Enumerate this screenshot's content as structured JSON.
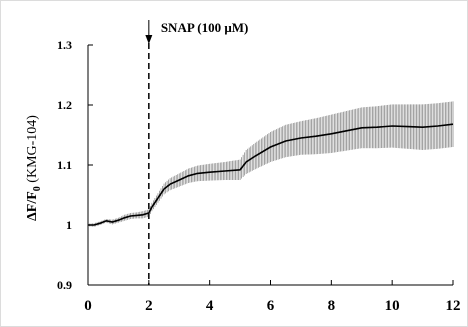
{
  "chart_data": {
    "type": "line",
    "title": "",
    "xlabel": "",
    "ylabel": {
      "delta_f": "ΔF/F",
      "subscript": "0",
      "suffix": " (KMG-104)"
    },
    "xlim": [
      0,
      12
    ],
    "ylim": [
      0.9,
      1.3
    ],
    "x_ticks": [
      "0",
      "2",
      "4",
      "6",
      "8",
      "10",
      "12"
    ],
    "y_ticks": [
      "0.9",
      "1",
      "1.1",
      "1.2",
      "1.3"
    ],
    "grid": false,
    "annotation": {
      "text": "SNAP (100 μM)",
      "x": 2
    },
    "series": [
      {
        "x": [
          0,
          0.2,
          0.4,
          0.6,
          0.8,
          1.0,
          1.2,
          1.4,
          1.6,
          1.8,
          2.0,
          2.1,
          2.3,
          2.5,
          2.7,
          3.0,
          3.3,
          3.6,
          4.0,
          4.5,
          5.0,
          5.2,
          5.5,
          6.0,
          6.5,
          7.0,
          7.5,
          8.0,
          8.5,
          9.0,
          9.5,
          10.0,
          10.5,
          11.0,
          11.5,
          12.0
        ],
        "values": [
          1.0,
          1.0,
          1.003,
          1.007,
          1.005,
          1.008,
          1.012,
          1.015,
          1.016,
          1.017,
          1.02,
          1.03,
          1.045,
          1.06,
          1.068,
          1.075,
          1.082,
          1.086,
          1.088,
          1.09,
          1.092,
          1.105,
          1.115,
          1.13,
          1.14,
          1.145,
          1.148,
          1.152,
          1.157,
          1.162,
          1.163,
          1.165,
          1.164,
          1.163,
          1.165,
          1.168
        ],
        "error": [
          0.002,
          0.003,
          0.003,
          0.003,
          0.004,
          0.004,
          0.005,
          0.005,
          0.005,
          0.006,
          0.006,
          0.007,
          0.008,
          0.009,
          0.01,
          0.011,
          0.012,
          0.013,
          0.014,
          0.015,
          0.017,
          0.02,
          0.022,
          0.025,
          0.027,
          0.028,
          0.03,
          0.032,
          0.033,
          0.034,
          0.035,
          0.036,
          0.037,
          0.038,
          0.038,
          0.038
        ]
      }
    ]
  }
}
